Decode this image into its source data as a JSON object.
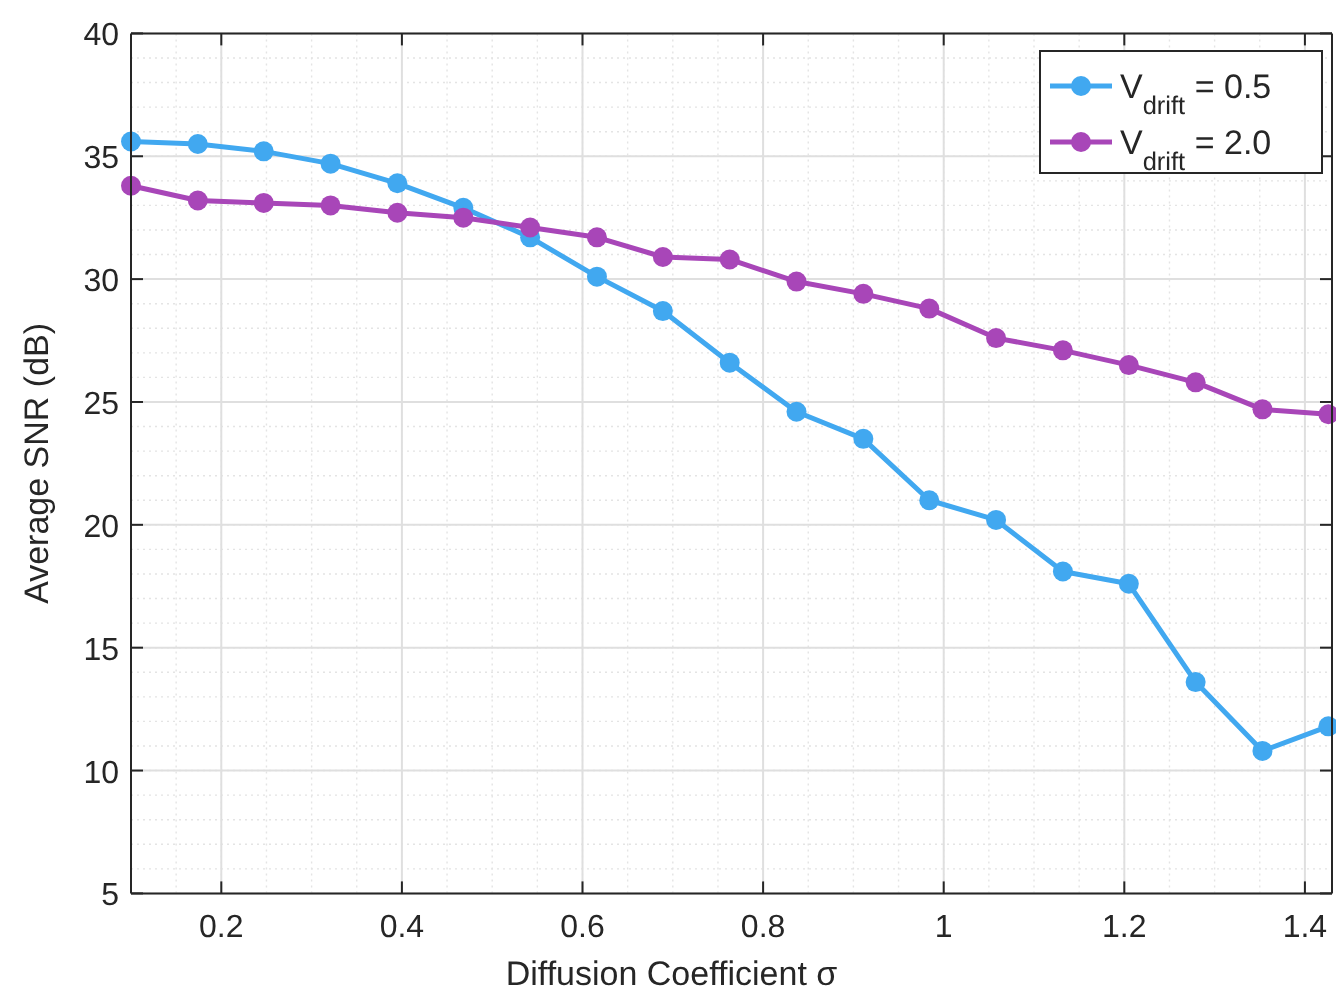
{
  "chart_data": {
    "type": "line",
    "xlabel": "Diffusion Coefficient σ",
    "ylabel": "Average SNR (dB)",
    "x": [
      0.1,
      0.174,
      0.247,
      0.321,
      0.395,
      0.468,
      0.542,
      0.616,
      0.689,
      0.763,
      0.837,
      0.911,
      0.984,
      1.058,
      1.132,
      1.205,
      1.279,
      1.353,
      1.426
    ],
    "series": [
      {
        "name": "V$_{drift}$ = 0.5",
        "color": "#41a8f0",
        "values": [
          35.6,
          35.5,
          35.2,
          34.7,
          33.9,
          32.9,
          31.7,
          30.1,
          28.7,
          26.6,
          24.6,
          23.5,
          21.0,
          20.2,
          18.1,
          17.6,
          13.6,
          10.8,
          11.8
        ]
      },
      {
        "name": "V$_{drift}$ = 2.0",
        "color": "#a846b8",
        "values": [
          33.8,
          33.2,
          33.1,
          33.0,
          32.7,
          32.5,
          32.1,
          31.7,
          30.9,
          30.8,
          29.9,
          29.4,
          28.8,
          27.6,
          27.1,
          26.5,
          25.8,
          24.7,
          24.5
        ]
      }
    ],
    "xlim": [
      0.1,
      1.43
    ],
    "xticks": [
      0.2,
      0.4,
      0.6,
      0.8,
      1,
      1.2,
      1.4
    ],
    "ylim": [
      5,
      40
    ],
    "yticks": [
      5,
      10,
      15,
      20,
      25,
      30,
      35,
      40
    ],
    "grid": true,
    "legend": "top right",
    "marker": "circle",
    "line_style": "solid"
  }
}
